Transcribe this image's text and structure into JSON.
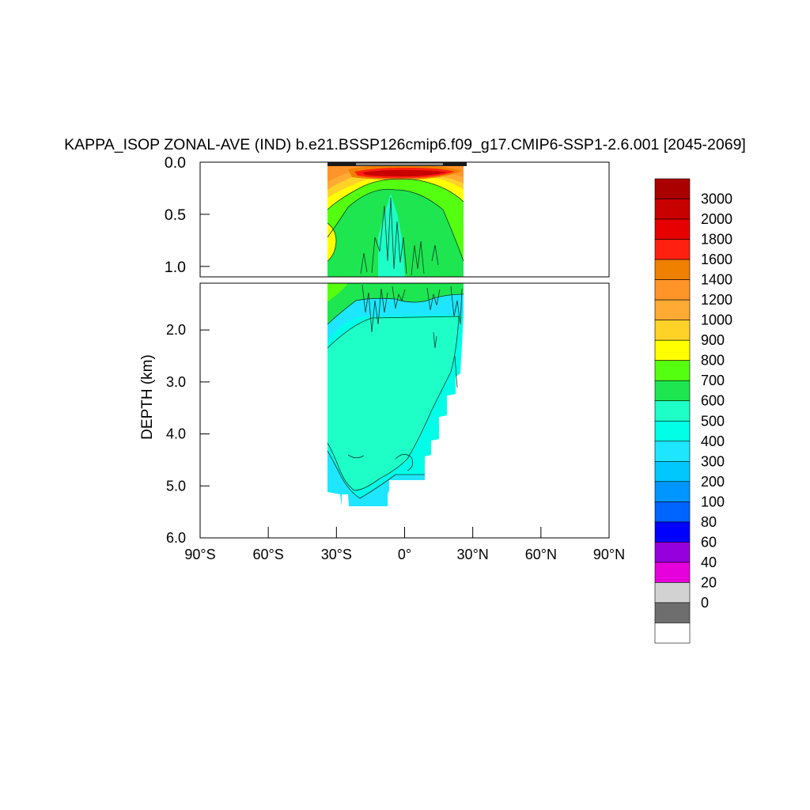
{
  "chart_data": {
    "type": "heatmap",
    "title": "KAPPA_ISOP ZONAL-AVE (IND) b.e21.BSSP126cmip6.f09_g17.CMIP6-SSP1-2.6.001 [2045-2069]",
    "xlabel": "",
    "ylabel": "DEPTH (km)",
    "xlim": [
      -90,
      90
    ],
    "ylim": [
      0,
      6
    ],
    "x_tick_labels": [
      "90°S",
      "60°S",
      "30°S",
      "0°",
      "30°N",
      "60°N",
      "90°N"
    ],
    "x_tick_values": [
      -90,
      -60,
      -30,
      0,
      30,
      60,
      90
    ],
    "upper_panel": {
      "ylim": [
        0,
        1.1
      ],
      "tick_labels": [
        "0.0",
        "0.5",
        "1.0"
      ],
      "tick_values": [
        0,
        0.5,
        1.0
      ]
    },
    "lower_panel": {
      "ylim": [
        1.1,
        6.0
      ],
      "tick_labels": [
        "2.0",
        "3.0",
        "4.0",
        "5.0",
        "6.0"
      ],
      "tick_values": [
        2.0,
        3.0,
        4.0,
        5.0,
        6.0
      ]
    },
    "data_extent": {
      "lat_min": -34,
      "lat_max": 26,
      "max_depth_km": 5.4
    },
    "colorbar": {
      "labels": [
        "3000",
        "2000",
        "1800",
        "1600",
        "1400",
        "1200",
        "1000",
        "900",
        "800",
        "700",
        "600",
        "500",
        "400",
        "300",
        "200",
        "100",
        "80",
        "60",
        "40",
        "20",
        "0"
      ],
      "colors": [
        "#aa0000",
        "#c80000",
        "#e60000",
        "#ff2010",
        "#f08000",
        "#ff9428",
        "#ffaa32",
        "#ffd228",
        "#ffff00",
        "#55ff10",
        "#1ee650",
        "#1effc8",
        "#00ffe6",
        "#1ee6ff",
        "#00c8ff",
        "#0096ff",
        "#0064ff",
        "#0000ff",
        "#9600dc",
        "#e600dc",
        "#d2d2d2",
        "#6e6e6e",
        "#ffffff"
      ]
    }
  }
}
